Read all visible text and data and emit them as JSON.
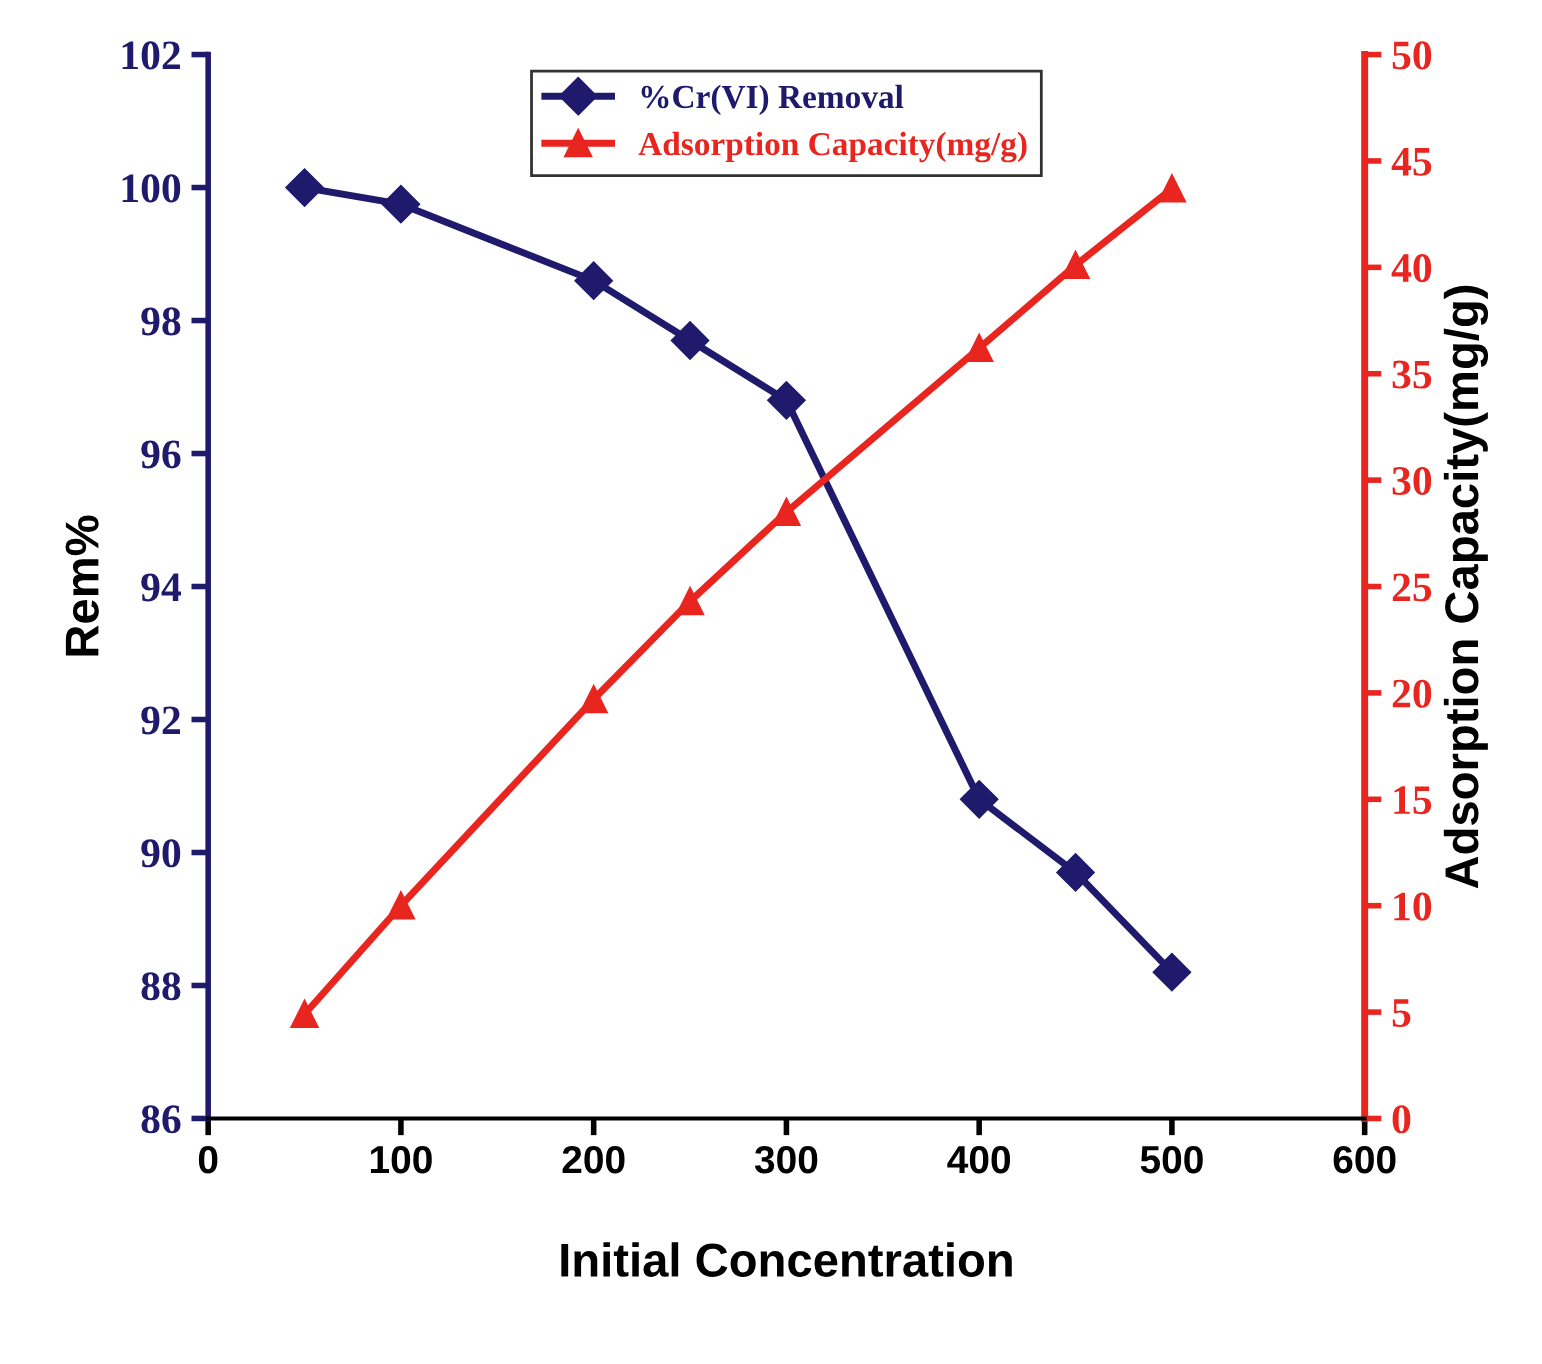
{
  "chart_data": {
    "type": "line",
    "xlabel": "Initial Concentration",
    "ylabel": "Rem%",
    "y2label": "Adsorption Capacity(mg/g)",
    "x": [
      50,
      100,
      200,
      250,
      300,
      400,
      450,
      500
    ],
    "series": [
      {
        "name": "%Cr(VI) Removal",
        "color": "#1f1a6b",
        "marker": "diamond",
        "values": [
          100.0,
          99.75,
          98.6,
          97.7,
          96.8,
          90.8,
          89.7,
          88.2
        ]
      },
      {
        "name": "Adsorption Capacity(mg/g)",
        "color": "#e8251f",
        "marker": "triangle",
        "axis": "y2",
        "values": [
          4.9,
          10.0,
          19.7,
          24.3,
          28.5,
          36.2,
          40.1,
          43.7
        ]
      }
    ],
    "xlim": [
      0,
      600
    ],
    "xticks": [
      0,
      100,
      200,
      300,
      400,
      500,
      600
    ],
    "ylim": [
      86,
      102
    ],
    "yticks": [
      86,
      88,
      90,
      92,
      94,
      96,
      98,
      100,
      102
    ],
    "y2lim": [
      0,
      50
    ],
    "y2ticks": [
      0,
      5,
      10,
      15,
      20,
      25,
      30,
      35,
      40,
      45,
      50
    ],
    "grid": false,
    "legend": "top",
    "line_style": "solid"
  }
}
